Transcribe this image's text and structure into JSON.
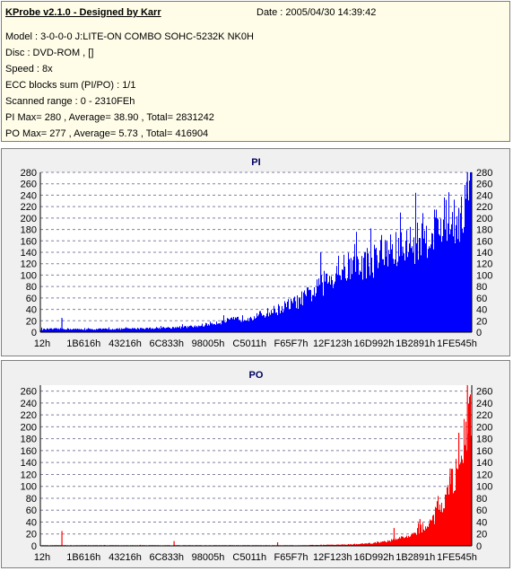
{
  "header": {
    "title": "KProbe v2.1.0 - Designed by Karr",
    "date": "Date : 2005/04/30 14:39:42",
    "lines": [
      "Model : 3-0-0-0 J:LITE-ON COMBO SOHC-5232K NK0H",
      "Disc : DVD-ROM ,  []",
      "Speed : 8x",
      "ECC blocks sum (PI/PO) : 1/1",
      "Scanned range : 0 - 2310FEh",
      "PI Max= 280 , Average= 38.90 , Total= 2831242",
      "PO Max= 277 , Average= 5.73 , Total= 416904"
    ]
  },
  "colors": {
    "pi": "#0000ff",
    "po": "#ff0000",
    "background": "#f0f0f0",
    "info_bg": "#fffde8"
  },
  "chart_data": [
    {
      "type": "area",
      "title": "PI",
      "x_tick_labels": [
        "12h",
        "1B616h",
        "43216h",
        "6C833h",
        "98005h",
        "C5011h",
        "F65F7h",
        "12F123h",
        "16D992h",
        "1B2891h",
        "1FE545h"
      ],
      "ylim": [
        0,
        280
      ],
      "y_ticks": [
        0,
        20,
        40,
        60,
        80,
        100,
        120,
        140,
        160,
        180,
        200,
        220,
        240,
        260,
        280
      ],
      "grid": true,
      "x_range": [
        0,
        1
      ],
      "points": [
        [
          0,
          5
        ],
        [
          0.05,
          6
        ],
        [
          0.1,
          5
        ],
        [
          0.2,
          6
        ],
        [
          0.3,
          8
        ],
        [
          0.36,
          10
        ],
        [
          0.4,
          16
        ],
        [
          0.45,
          22
        ],
        [
          0.5,
          28
        ],
        [
          0.55,
          40
        ],
        [
          0.6,
          55
        ],
        [
          0.64,
          75
        ],
        [
          0.67,
          95
        ],
        [
          0.7,
          110
        ],
        [
          0.75,
          120
        ],
        [
          0.8,
          135
        ],
        [
          0.85,
          150
        ],
        [
          0.9,
          175
        ],
        [
          0.94,
          195
        ],
        [
          0.98,
          210
        ],
        [
          1.0,
          260
        ]
      ],
      "spikes": [
        [
          0.05,
          25
        ],
        [
          0.65,
          140
        ],
        [
          0.72,
          130
        ],
        [
          0.76,
          138
        ],
        [
          0.78,
          135
        ],
        [
          0.8,
          158
        ],
        [
          0.84,
          150
        ],
        [
          0.88,
          165
        ],
        [
          0.92,
          200
        ],
        [
          0.97,
          215
        ],
        [
          0.99,
          280
        ]
      ]
    },
    {
      "type": "area",
      "title": "PO",
      "x_tick_labels": [
        "12h",
        "1B616h",
        "43216h",
        "6C833h",
        "98005h",
        "C5011h",
        "F65F7h",
        "12F123h",
        "16D992h",
        "1B2891h",
        "1FE545h"
      ],
      "ylim": [
        0,
        270
      ],
      "y_ticks": [
        0,
        20,
        40,
        60,
        80,
        100,
        120,
        140,
        160,
        180,
        200,
        220,
        240,
        260
      ],
      "grid": true,
      "x_range": [
        0,
        1
      ],
      "points": [
        [
          0,
          1
        ],
        [
          0.3,
          1
        ],
        [
          0.6,
          1
        ],
        [
          0.7,
          2
        ],
        [
          0.76,
          4
        ],
        [
          0.8,
          8
        ],
        [
          0.85,
          15
        ],
        [
          0.88,
          28
        ],
        [
          0.91,
          45
        ],
        [
          0.94,
          80
        ],
        [
          0.96,
          120
        ],
        [
          0.98,
          170
        ],
        [
          1.0,
          230
        ]
      ],
      "spikes": [
        [
          0.05,
          25
        ],
        [
          0.31,
          8
        ],
        [
          0.55,
          6
        ],
        [
          0.82,
          30
        ],
        [
          0.88,
          45
        ],
        [
          0.92,
          75
        ],
        [
          0.95,
          130
        ],
        [
          0.97,
          190
        ],
        [
          0.99,
          270
        ]
      ]
    }
  ]
}
